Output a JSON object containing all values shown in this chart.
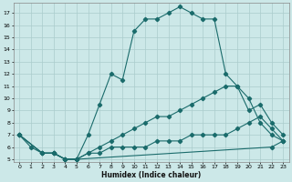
{
  "xlabel": "Humidex (Indice chaleur)",
  "bg_color": "#cce8e8",
  "grid_color": "#aacccc",
  "line_color": "#1a6b6b",
  "line1_x": [
    0,
    1,
    2,
    3,
    4,
    5,
    6,
    7,
    8,
    9,
    10,
    11,
    12,
    13,
    14,
    15,
    16,
    17,
    18,
    19,
    20,
    21,
    22,
    23
  ],
  "line1_y": [
    7,
    6,
    5.5,
    5.5,
    5,
    5,
    7,
    9.5,
    12,
    11.5,
    15.5,
    16.5,
    16.5,
    17,
    17.5,
    17,
    16.5,
    16.5,
    12,
    11,
    10,
    8,
    7,
    6.5
  ],
  "line2_x": [
    0,
    2,
    3,
    4,
    5,
    6,
    7,
    8,
    9,
    10,
    11,
    12,
    13,
    14,
    15,
    16,
    17,
    18,
    19,
    20,
    21,
    22,
    23
  ],
  "line2_y": [
    7,
    5.5,
    5.5,
    5,
    5,
    5.5,
    6,
    6.5,
    7,
    7.5,
    8,
    8.5,
    8.5,
    9,
    9.5,
    10,
    10.5,
    11,
    11,
    9,
    9.5,
    8,
    7
  ],
  "line3_x": [
    0,
    2,
    3,
    4,
    5,
    6,
    7,
    8,
    9,
    10,
    11,
    12,
    13,
    14,
    15,
    16,
    17,
    18,
    19,
    20,
    21,
    22,
    23
  ],
  "line3_y": [
    7,
    5.5,
    5.5,
    5,
    5,
    5.5,
    5.5,
    6,
    6,
    6,
    6,
    6.5,
    6.5,
    6.5,
    7,
    7,
    7,
    7,
    7.5,
    8,
    8.5,
    7.5,
    6.5
  ],
  "line4_x": [
    0,
    2,
    3,
    4,
    5,
    22,
    23
  ],
  "line4_y": [
    7,
    5.5,
    5.5,
    5,
    5,
    6,
    6.5
  ],
  "ylim": [
    5,
    17.5
  ],
  "xlim": [
    -0.5,
    23.5
  ],
  "yticks": [
    5,
    6,
    7,
    8,
    9,
    10,
    11,
    12,
    13,
    14,
    15,
    16,
    17
  ],
  "xticks": [
    0,
    1,
    2,
    3,
    4,
    5,
    6,
    7,
    8,
    9,
    10,
    11,
    12,
    13,
    14,
    15,
    16,
    17,
    18,
    19,
    20,
    21,
    22,
    23
  ]
}
